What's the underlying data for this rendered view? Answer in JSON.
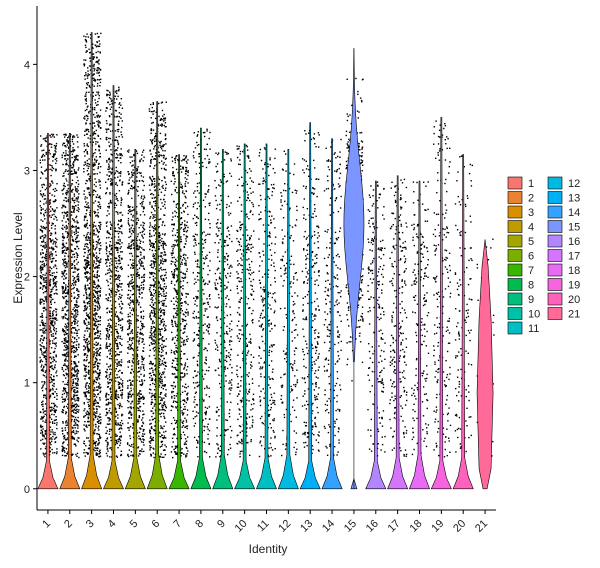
{
  "chart_data": {
    "type": "violin",
    "title": "",
    "xlabel": "Identity",
    "ylabel": "Expression Level",
    "ylim": [
      -0.2,
      4.55
    ],
    "yticks": [
      0,
      1,
      2,
      3,
      4
    ],
    "categories": [
      "1",
      "2",
      "3",
      "4",
      "5",
      "6",
      "7",
      "8",
      "9",
      "10",
      "11",
      "12",
      "13",
      "14",
      "15",
      "16",
      "17",
      "18",
      "19",
      "20",
      "21"
    ],
    "colors": [
      "#F8766D",
      "#EA8331",
      "#D89000",
      "#C09B00",
      "#A3A500",
      "#7CAE00",
      "#39B600",
      "#00BB4E",
      "#00BF7D",
      "#00C1A3",
      "#00BFC4",
      "#00BAE0",
      "#00B0F6",
      "#35A2FF",
      "#7C96FF",
      "#B186FF",
      "#D575FE",
      "#E76BF3",
      "#F863DF",
      "#FF62BC",
      "#FF6A98"
    ],
    "max_values": [
      3.35,
      3.35,
      4.3,
      3.8,
      3.2,
      3.65,
      3.15,
      3.4,
      3.2,
      3.25,
      3.25,
      3.2,
      3.45,
      3.3,
      4.15,
      2.9,
      2.95,
      2.9,
      3.5,
      3.15,
      2.38
    ],
    "median_values": [
      0,
      0,
      0,
      0,
      0,
      0,
      0,
      0,
      0,
      0,
      0,
      0,
      0,
      0,
      2.5,
      0,
      0,
      0,
      0,
      0,
      0
    ],
    "legend": {
      "position": "right",
      "columns": [
        [
          "1",
          "2",
          "3",
          "4",
          "5",
          "6",
          "7",
          "8",
          "9",
          "10",
          "11"
        ],
        [
          "12",
          "13",
          "14",
          "15",
          "16",
          "17",
          "18",
          "19",
          "20",
          "21"
        ]
      ]
    },
    "points": "jittered",
    "grid": false
  }
}
